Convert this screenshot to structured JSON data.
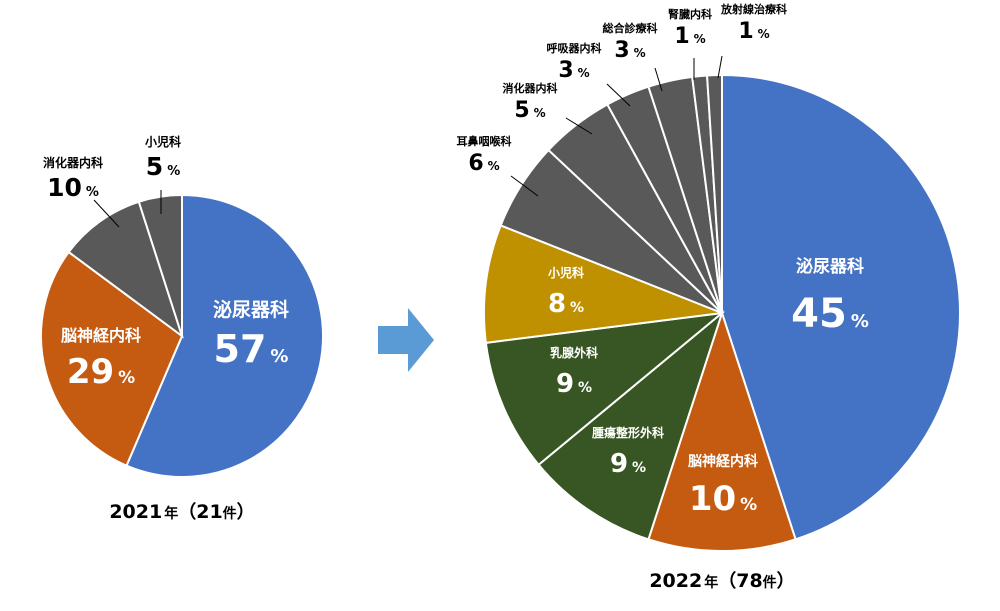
{
  "chart_data": [
    {
      "type": "pie",
      "caption": {
        "year": "2021",
        "year_unit": "年",
        "paren_open": "（",
        "count": "21",
        "count_unit": "件",
        "paren_close": "）"
      },
      "slices": [
        {
          "label": "泌尿器科",
          "value": 57,
          "unit": "%",
          "color": "#4472C4"
        },
        {
          "label": "脳神経内科",
          "value": 29,
          "unit": "%",
          "color": "#C55A11"
        },
        {
          "label": "消化器内科",
          "value": 10,
          "unit": "%",
          "color": "#595959"
        },
        {
          "label": "小児科",
          "value": 5,
          "unit": "%",
          "color": "#595959"
        }
      ]
    },
    {
      "type": "pie",
      "caption": {
        "year": "2022",
        "year_unit": "年",
        "paren_open": "（",
        "count": "78",
        "count_unit": "件",
        "paren_close": "）"
      },
      "slices": [
        {
          "label": "泌尿器科",
          "value": 45,
          "unit": "%",
          "color": "#4472C4"
        },
        {
          "label": "脳神経内科",
          "value": 10,
          "unit": "%",
          "color": "#C55A11"
        },
        {
          "label": "腫瘍整形外科",
          "value": 9,
          "unit": "%",
          "color": "#375623"
        },
        {
          "label": "乳腺外科",
          "value": 9,
          "unit": "%",
          "color": "#375623"
        },
        {
          "label": "小児科",
          "value": 8,
          "unit": "%",
          "color": "#BF9000"
        },
        {
          "label": "耳鼻咽喉科",
          "value": 6,
          "unit": "%",
          "color": "#595959"
        },
        {
          "label": "消化器内科",
          "value": 5,
          "unit": "%",
          "color": "#595959"
        },
        {
          "label": "呼吸器内科",
          "value": 3,
          "unit": "%",
          "color": "#595959"
        },
        {
          "label": "総合診療科",
          "value": 3,
          "unit": "%",
          "color": "#595959"
        },
        {
          "label": "腎臓内科",
          "value": 1,
          "unit": "%",
          "color": "#595959"
        },
        {
          "label": "放射線治療科",
          "value": 1,
          "unit": "%",
          "color": "#595959"
        }
      ]
    }
  ],
  "arrow_color": "#5B9BD5"
}
